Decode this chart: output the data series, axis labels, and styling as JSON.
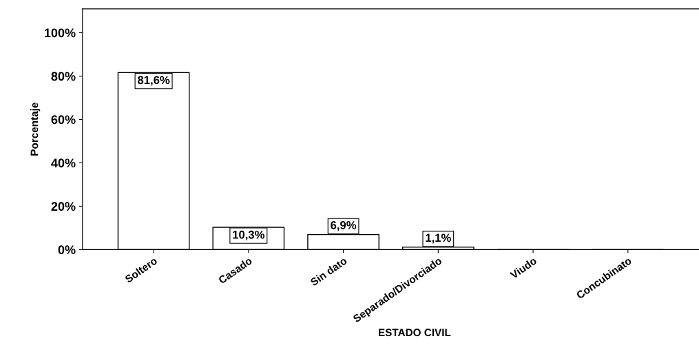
{
  "chart_data": {
    "type": "bar",
    "xlabel": "ESTADO CIVIL",
    "ylabel": "Porcentaje",
    "categories": [
      "Soltero",
      "Casado",
      "Sin dato",
      "Separado/Divorciado",
      "Viudo",
      "Concubinato"
    ],
    "values": [
      81.6,
      10.3,
      6.9,
      1.1,
      0,
      0
    ],
    "value_labels": [
      "81,6%",
      "10,3%",
      "6,9%",
      "1,1%",
      null,
      null
    ],
    "colors": [
      "#ffffff",
      "#ffffff",
      "#ffffff",
      "#ffffff",
      "#000000",
      "#000000"
    ],
    "ylim": [
      0,
      111
    ],
    "yticks": [
      {
        "value": 0,
        "label": "0%"
      },
      {
        "value": 20,
        "label": "20%"
      },
      {
        "value": 40,
        "label": "40%"
      },
      {
        "value": 60,
        "label": "60%"
      },
      {
        "value": 80,
        "label": "80%"
      },
      {
        "value": 100,
        "label": "100%"
      }
    ],
    "grid": false
  }
}
